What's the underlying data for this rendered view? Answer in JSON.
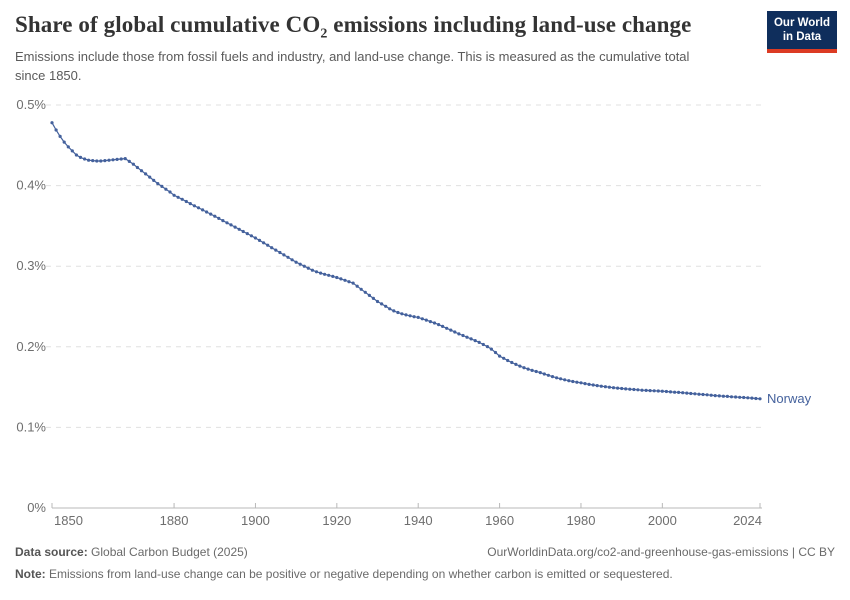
{
  "header": {
    "title_pre": "Share of global cumulative CO",
    "title_sub": "2",
    "title_post": " emissions including land-use change",
    "subtitle": "Emissions include those from fossil fuels and industry, and land-use change. This is measured as the cumulative total since 1850."
  },
  "logo": {
    "line1": "Our World",
    "line2": "in Data",
    "bg_color": "#0f2e5c",
    "bar_color": "#dc3b23"
  },
  "chart_data": {
    "type": "line",
    "title": "Share of global cumulative CO₂ emissions including land-use change",
    "xlabel": "",
    "ylabel": "",
    "xlim": [
      1850,
      2024
    ],
    "ylim": [
      0,
      0.5
    ],
    "x_ticks": [
      1850,
      1880,
      1900,
      1920,
      1940,
      1960,
      1980,
      2000,
      2024
    ],
    "y_ticks": [
      {
        "v": 0.0,
        "label": "0%"
      },
      {
        "v": 0.1,
        "label": "0.1%"
      },
      {
        "v": 0.2,
        "label": "0.2%"
      },
      {
        "v": 0.3,
        "label": "0.3%"
      },
      {
        "v": 0.4,
        "label": "0.4%"
      },
      {
        "v": 0.5,
        "label": "0.5%"
      }
    ],
    "grid": "horizontal-dashed",
    "legend": "inline-end-label",
    "line_color": "#44619c",
    "marker": "dot",
    "unit": "%",
    "series": [
      {
        "name": "Norway",
        "x_start": 1850,
        "x_end": 2024,
        "x_step": 1,
        "values": [
          0.478,
          0.469,
          0.461,
          0.454,
          0.448,
          0.443,
          0.438,
          0.435,
          0.433,
          0.4315,
          0.431,
          0.4305,
          0.4305,
          0.431,
          0.4315,
          0.432,
          0.4325,
          0.433,
          0.4335,
          0.43,
          0.4265,
          0.4225,
          0.4185,
          0.4145,
          0.4105,
          0.4065,
          0.4025,
          0.399,
          0.3955,
          0.392,
          0.388,
          0.3855,
          0.383,
          0.3803,
          0.3777,
          0.375,
          0.3724,
          0.3698,
          0.3672,
          0.3646,
          0.362,
          0.3593,
          0.3566,
          0.3539,
          0.3512,
          0.3485,
          0.3458,
          0.3431,
          0.3404,
          0.3377,
          0.335,
          0.332,
          0.329,
          0.326,
          0.323,
          0.32,
          0.317,
          0.314,
          0.311,
          0.308,
          0.305,
          0.3025,
          0.3,
          0.2975,
          0.295,
          0.293,
          0.2915,
          0.29,
          0.2887,
          0.2873,
          0.286,
          0.2843,
          0.2825,
          0.2808,
          0.279,
          0.2752,
          0.2714,
          0.2676,
          0.2638,
          0.26,
          0.2562,
          0.2532,
          0.2502,
          0.2472,
          0.2446,
          0.2425,
          0.2409,
          0.2396,
          0.2384,
          0.2374,
          0.2365,
          0.2348,
          0.2331,
          0.2313,
          0.2295,
          0.2275,
          0.2253,
          0.223,
          0.2207,
          0.2184,
          0.216,
          0.214,
          0.2119,
          0.2098,
          0.2077,
          0.2055,
          0.2029,
          0.2002,
          0.1972,
          0.1929,
          0.1885,
          0.1857,
          0.183,
          0.1805,
          0.1782,
          0.176,
          0.1741,
          0.1723,
          0.1707,
          0.1693,
          0.168,
          0.1663,
          0.1646,
          0.163,
          0.1616,
          0.1603,
          0.1591,
          0.158,
          0.157,
          0.1561,
          0.1553,
          0.1543,
          0.1534,
          0.1526,
          0.1518,
          0.1511,
          0.1505,
          0.1499,
          0.1493,
          0.1488,
          0.1483,
          0.1478,
          0.1474,
          0.147,
          0.1466,
          0.1462,
          0.1459,
          0.1456,
          0.1454,
          0.1451,
          0.1449,
          0.1445,
          0.1441,
          0.1437,
          0.1434,
          0.143,
          0.1426,
          0.1421,
          0.1417,
          0.1412,
          0.1408,
          0.1404,
          0.1399,
          0.1395,
          0.1391,
          0.1387,
          0.1384,
          0.138,
          0.1377,
          0.1374,
          0.1371,
          0.1367,
          0.1363,
          0.1359,
          0.1355
        ]
      }
    ]
  },
  "footer": {
    "source_label": "Data source:",
    "source_value": " Global Carbon Budget (2025)",
    "credit": "OurWorldinData.org/co2-and-greenhouse-gas-emissions | CC BY",
    "note_label": "Note:",
    "note_value": " Emissions from land-use change can be positive or negative depending on whether carbon is emitted or sequestered."
  }
}
